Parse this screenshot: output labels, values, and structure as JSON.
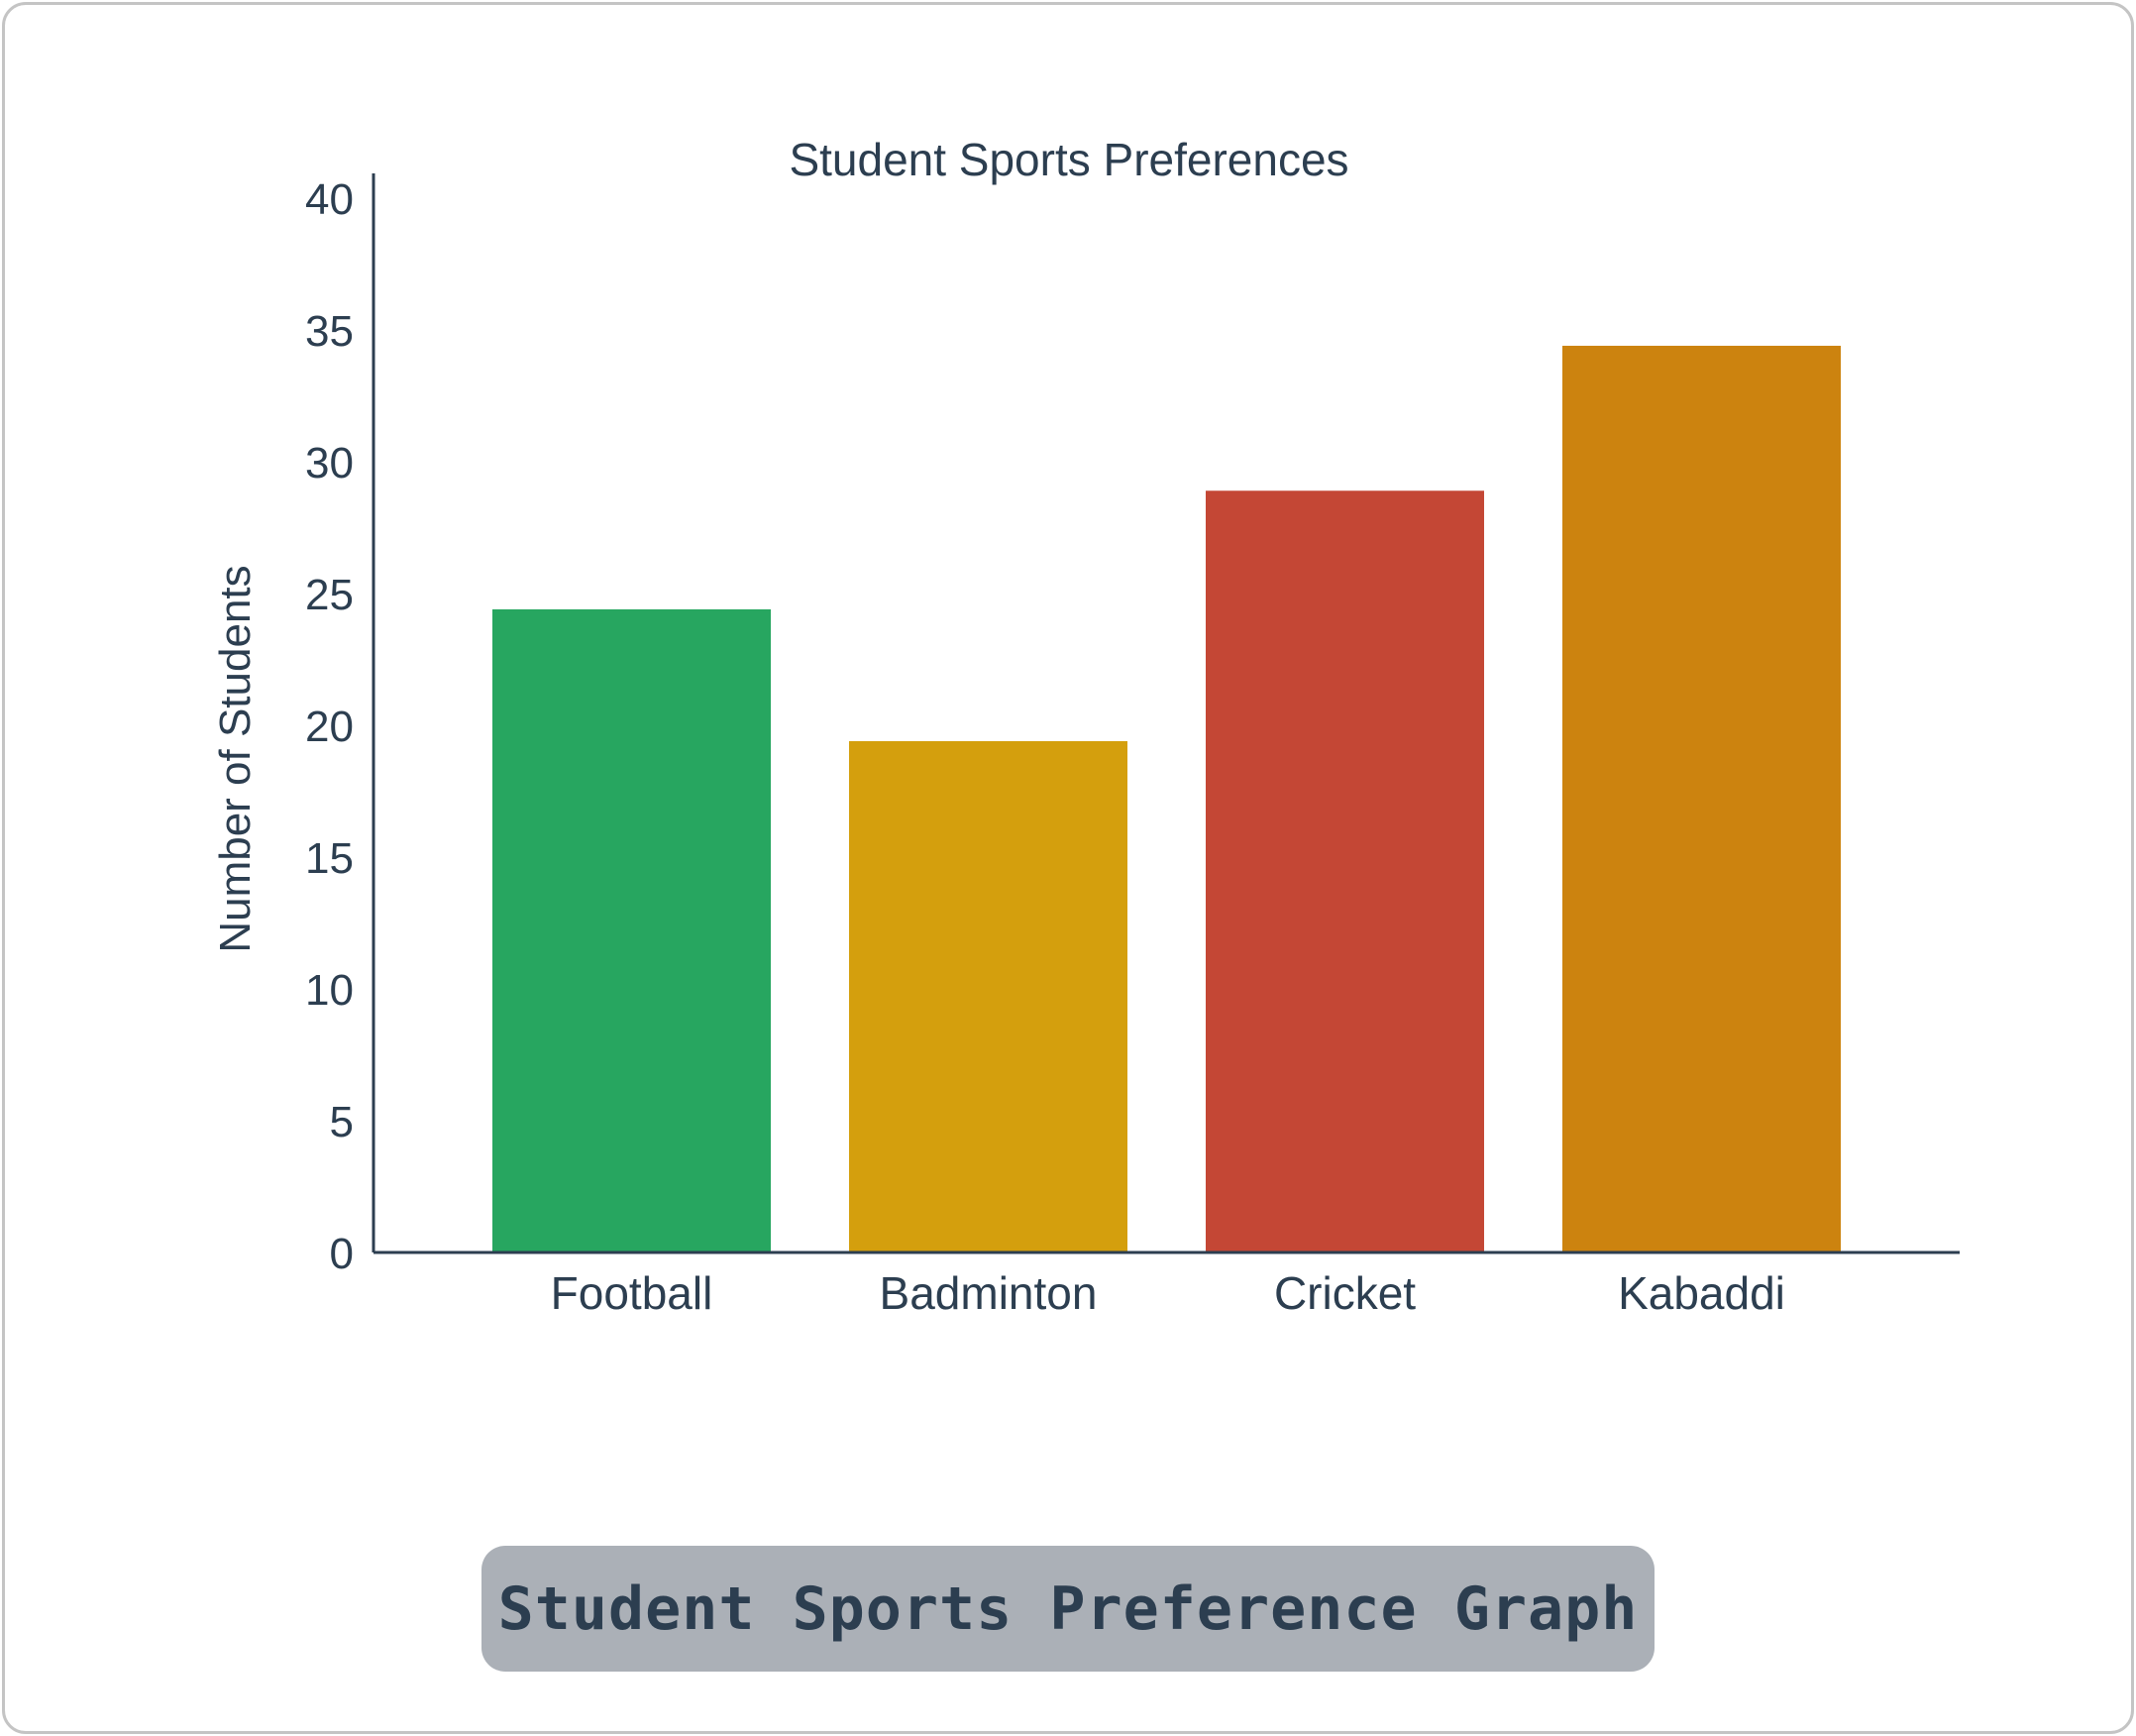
{
  "chart_data": {
    "type": "bar",
    "title": "Student Sports Preferences",
    "xlabel": "",
    "ylabel": "Number of Students",
    "categories": [
      "Football",
      "Badminton",
      "Cricket",
      "Kabaddi"
    ],
    "values": [
      24.4,
      19.4,
      28.9,
      34.4
    ],
    "colors": [
      "#27a660",
      "#d49f0d",
      "#c44735",
      "#cc830f"
    ],
    "ylim": [
      0,
      40
    ],
    "yticks": [
      0,
      5,
      10,
      15,
      20,
      25,
      30,
      35,
      40
    ],
    "grid": false,
    "axis_color": "#2c3e50",
    "text_color": "#2c3e50"
  },
  "caption": {
    "text": "Student Sports Preference Graph"
  }
}
